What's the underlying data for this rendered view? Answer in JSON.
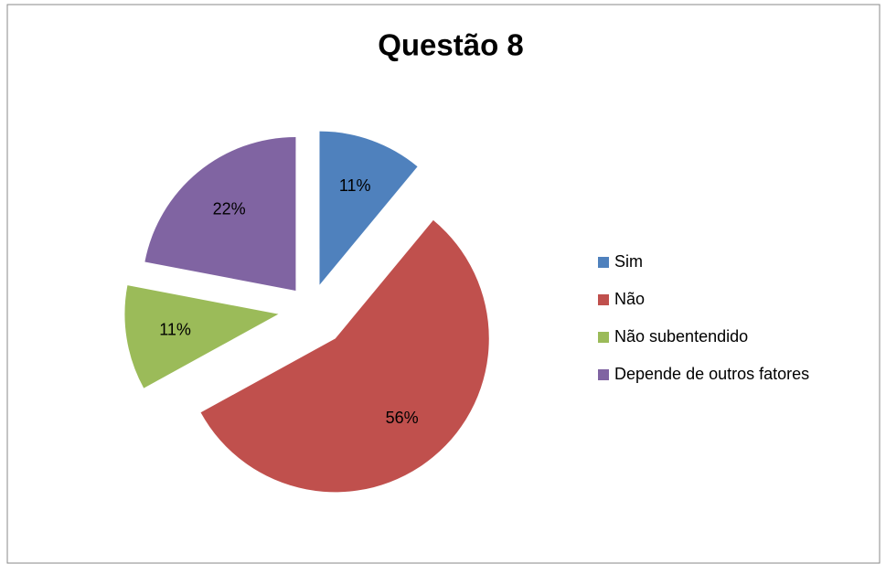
{
  "chart_data": {
    "type": "pie",
    "title": "Questão 8",
    "categories": [
      "Sim",
      "Não",
      "Não subentendido",
      "Depende de outros fatores"
    ],
    "values": [
      11,
      56,
      11,
      22
    ],
    "value_labels": [
      "11%",
      "56%",
      "11%",
      "22%"
    ],
    "colors": [
      "#4f81bd",
      "#c0504d",
      "#9bbb59",
      "#8064a2"
    ],
    "legend": "right"
  }
}
